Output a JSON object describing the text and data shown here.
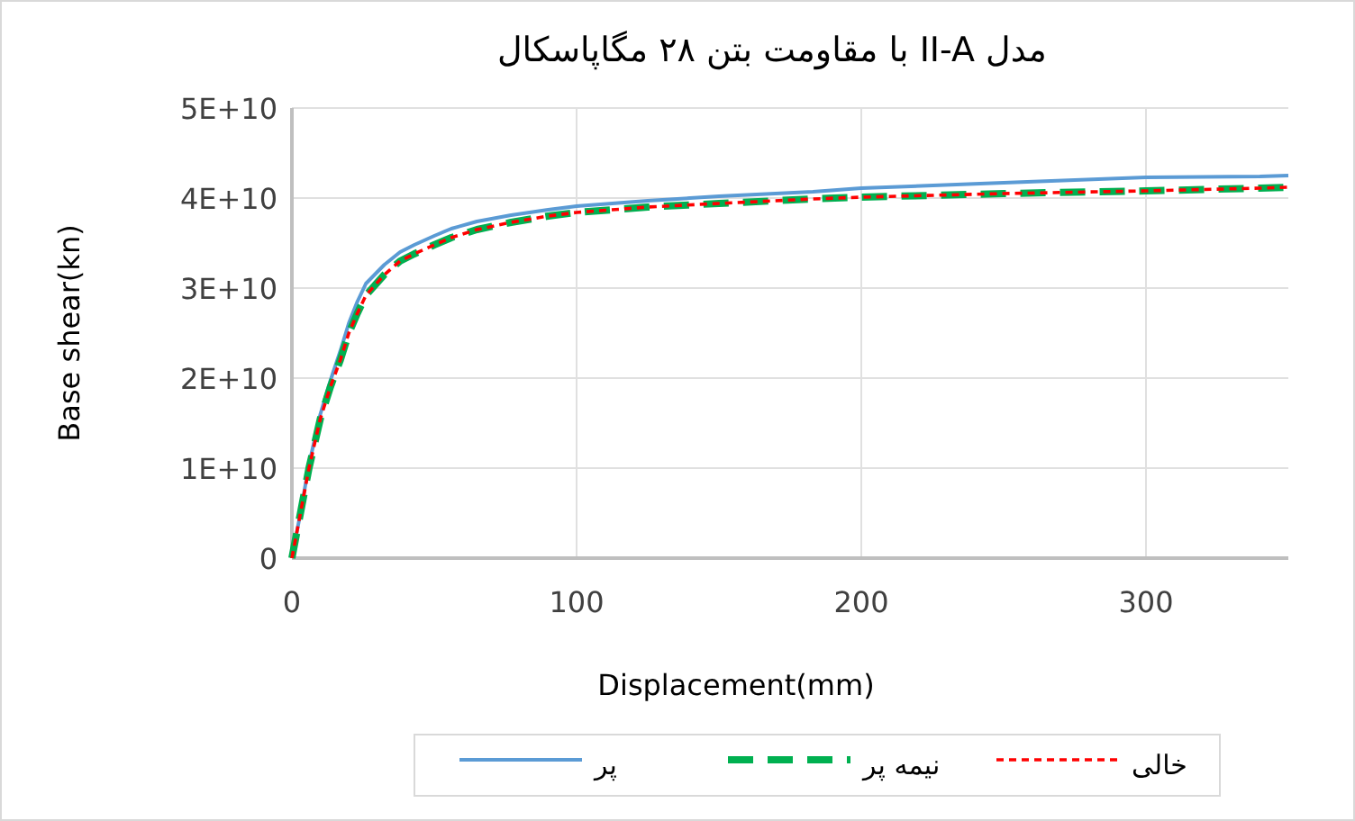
{
  "chart_data": {
    "type": "line",
    "title": "مدل II-A با مقاومت بتن ۲۸ مگاپاسکال",
    "xlabel": "Displacement(mm)",
    "ylabel": "Base shear(kn)",
    "x": [
      0,
      3,
      6,
      10,
      13.5,
      17,
      20,
      23,
      26,
      32.5,
      38,
      43,
      50,
      56,
      65,
      77,
      90,
      100,
      125,
      150,
      183,
      200,
      250,
      300,
      340,
      350
    ],
    "series": [
      {
        "name": "پر",
        "color": "#5b9bd5",
        "line_style": "solid",
        "values": [
          0,
          5000000000.0,
          10400000000.0,
          16000000000.0,
          19700000000.0,
          23000000000.0,
          26100000000.0,
          28500000000.0,
          30500000000.0,
          32600000000.0,
          34000000000.0,
          34800000000.0,
          35800000000.0,
          36600000000.0,
          37400000000.0,
          38100000000.0,
          38700000000.0,
          39100000000.0,
          39700000000.0,
          40200000000.0,
          40700000000.0,
          41100000000.0,
          41700000000.0,
          42300000000.0,
          42400000000.0,
          42500000000.0
        ]
      },
      {
        "name": "نیمه پر",
        "color": "#00b050",
        "line_style": "dashed",
        "values": [
          0,
          5000000000.0,
          10000000000.0,
          15500000000.0,
          19000000000.0,
          22000000000.0,
          25000000000.0,
          27200000000.0,
          29200000000.0,
          31500000000.0,
          33000000000.0,
          33800000000.0,
          34800000000.0,
          35600000000.0,
          36500000000.0,
          37300000000.0,
          38000000000.0,
          38400000000.0,
          39000000000.0,
          39400000000.0,
          39900000000.0,
          40100000000.0,
          40500000000.0,
          40800000000.0,
          41100000000.0,
          41200000000.0
        ]
      },
      {
        "name": "خالی",
        "color": "#ff0000",
        "line_style": "dotted",
        "values": [
          0,
          5000000000.0,
          10000000000.0,
          15500000000.0,
          19000000000.0,
          22000000000.0,
          25000000000.0,
          27200000000.0,
          29200000000.0,
          31500000000.0,
          33000000000.0,
          33800000000.0,
          34800000000.0,
          35600000000.0,
          36500000000.0,
          37300000000.0,
          38000000000.0,
          38400000000.0,
          39000000000.0,
          39400000000.0,
          39900000000.0,
          40100000000.0,
          40500000000.0,
          40800000000.0,
          41100000000.0,
          41200000000.0
        ]
      }
    ],
    "xlim": [
      0,
      350
    ],
    "xticks": [
      0,
      100,
      200,
      300
    ],
    "ylim": [
      0,
      50000000000.0
    ],
    "yticks": [
      0,
      {
        "value": 10000000000.0,
        "label": "1E+10"
      },
      {
        "value": 20000000000.0,
        "label": "2E+10"
      },
      {
        "value": 30000000000.0,
        "label": "3E+10"
      },
      {
        "value": 40000000000.0,
        "label": "4E+10"
      },
      {
        "value": 50000000000.0,
        "label": "5E+10"
      }
    ],
    "grid": true,
    "legend": "bottom",
    "marker": "none"
  }
}
